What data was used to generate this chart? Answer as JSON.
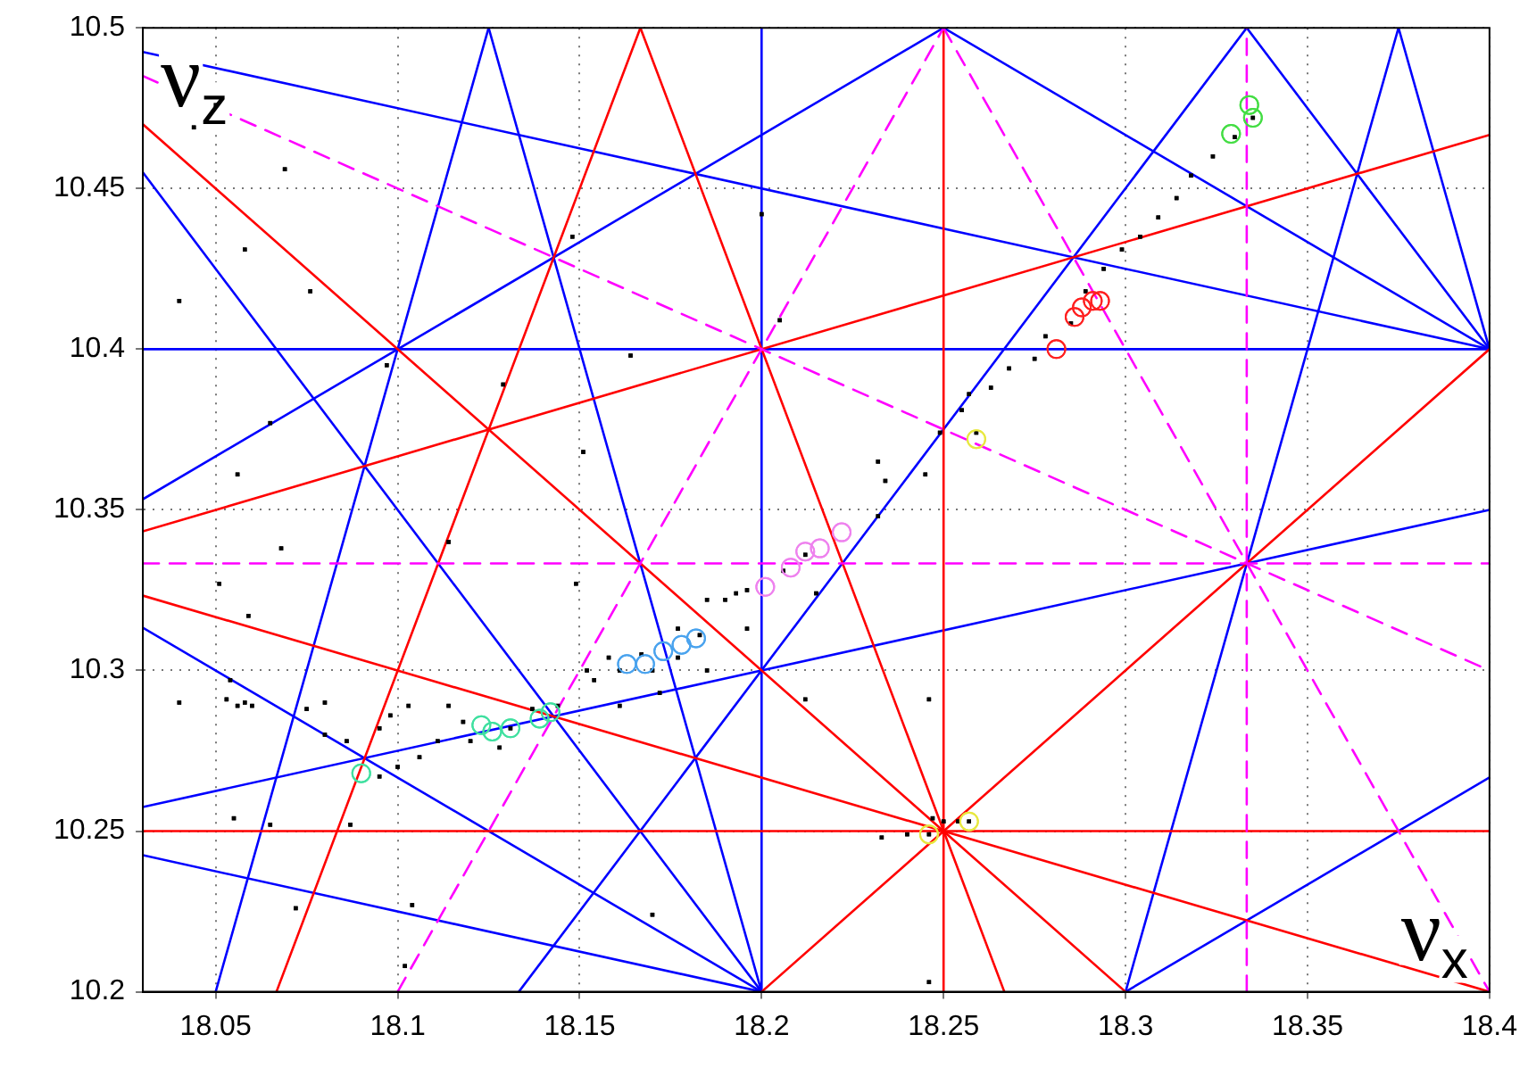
{
  "chart_data": {
    "type": "scatter",
    "xlabel": "ν$_{x}$",
    "ylabel": "ν$_{z}$",
    "xlim": [
      18.03,
      18.4
    ],
    "ylim": [
      10.2,
      10.5
    ],
    "xticks": [
      18.05,
      18.1,
      18.15,
      18.2,
      18.25,
      18.3,
      18.35,
      18.4
    ],
    "yticks": [
      10.2,
      10.25,
      10.3,
      10.35,
      10.4,
      10.45,
      10.5
    ],
    "grid": true,
    "series": [
      {
        "type": "line",
        "color": "#0000ff",
        "marker": "none",
        "line_style": "solid",
        "x": [
          18.03,
          18.4
        ],
        "values": [
          10.4,
          10.4
        ]
      },
      {
        "type": "line",
        "color": "#0000ff",
        "marker": "none",
        "line_style": "solid",
        "x": [
          18.2,
          18.2
        ],
        "values": [
          10.2,
          10.5
        ]
      },
      {
        "type": "line",
        "color": "#0000ff",
        "marker": "none",
        "line_style": "solid",
        "x": [
          18.03,
          18.4
        ],
        "values": [
          10.4925,
          10.4
        ]
      },
      {
        "type": "line",
        "color": "#0000ff",
        "marker": "none",
        "line_style": "solid",
        "x": [
          18.03,
          18.2
        ],
        "values": [
          10.2425,
          10.2
        ]
      },
      {
        "type": "line",
        "color": "#0000ff",
        "marker": "none",
        "line_style": "solid",
        "x": [
          18.03,
          18.4
        ],
        "values": [
          10.2575,
          10.35
        ]
      },
      {
        "type": "line",
        "color": "#0000ff",
        "marker": "none",
        "line_style": "solid",
        "x": [
          18.125,
          18.2
        ],
        "values": [
          10.5,
          10.2
        ]
      },
      {
        "type": "line",
        "color": "#0000ff",
        "marker": "none",
        "line_style": "solid",
        "x": [
          18.375,
          18.4
        ],
        "values": [
          10.5,
          10.4
        ]
      },
      {
        "type": "line",
        "color": "#0000ff",
        "marker": "none",
        "line_style": "solid",
        "x": [
          18.05,
          18.125
        ],
        "values": [
          10.2,
          10.5
        ]
      },
      {
        "type": "line",
        "color": "#0000ff",
        "marker": "none",
        "line_style": "solid",
        "x": [
          18.3,
          18.375
        ],
        "values": [
          10.2,
          10.5
        ]
      },
      {
        "type": "line",
        "color": "#0000ff",
        "marker": "none",
        "line_style": "solid",
        "x": [
          18.25,
          18.4
        ],
        "values": [
          10.5,
          10.4
        ]
      },
      {
        "type": "line",
        "color": "#0000ff",
        "marker": "none",
        "line_style": "solid",
        "x": [
          18.03,
          18.2
        ],
        "values": [
          10.3133,
          10.2
        ]
      },
      {
        "type": "line",
        "color": "#0000ff",
        "marker": "none",
        "line_style": "solid",
        "x": [
          18.03,
          18.25
        ],
        "values": [
          10.3533,
          10.5
        ]
      },
      {
        "type": "line",
        "color": "#0000ff",
        "marker": "none",
        "line_style": "solid",
        "x": [
          18.3,
          18.4
        ],
        "values": [
          10.2,
          10.2667
        ]
      },
      {
        "type": "line",
        "color": "#0000ff",
        "marker": "none",
        "line_style": "solid",
        "x": [
          18.03,
          18.2
        ],
        "values": [
          10.455,
          10.2
        ]
      },
      {
        "type": "line",
        "color": "#0000ff",
        "marker": "none",
        "line_style": "solid",
        "x": [
          18.3333,
          18.4
        ],
        "values": [
          10.5,
          10.4
        ]
      },
      {
        "type": "line",
        "color": "#0000ff",
        "marker": "none",
        "line_style": "solid",
        "x": [
          18.1333,
          18.3333
        ],
        "values": [
          10.2,
          10.5
        ]
      },
      {
        "type": "line",
        "color": "#ff0000",
        "marker": "none",
        "line_style": "solid",
        "x": [
          18.25,
          18.25
        ],
        "values": [
          10.2,
          10.5
        ]
      },
      {
        "type": "line",
        "color": "#ff0000",
        "marker": "none",
        "line_style": "solid",
        "x": [
          18.03,
          18.4
        ],
        "values": [
          10.25,
          10.25
        ]
      },
      {
        "type": "line",
        "color": "#ff0000",
        "marker": "none",
        "line_style": "solid",
        "x": [
          18.03,
          18.3
        ],
        "values": [
          10.47,
          10.2
        ]
      },
      {
        "type": "line",
        "color": "#ff0000",
        "marker": "none",
        "line_style": "solid",
        "x": [
          18.2,
          18.4
        ],
        "values": [
          10.2,
          10.4
        ]
      },
      {
        "type": "line",
        "color": "#ff0000",
        "marker": "none",
        "line_style": "solid",
        "x": [
          18.1667,
          18.2667
        ],
        "values": [
          10.5,
          10.2
        ]
      },
      {
        "type": "line",
        "color": "#ff0000",
        "marker": "none",
        "line_style": "solid",
        "x": [
          18.03,
          18.4
        ],
        "values": [
          10.3233,
          10.2
        ]
      },
      {
        "type": "line",
        "color": "#ff0000",
        "marker": "none",
        "line_style": "solid",
        "x": [
          18.0667,
          18.1667
        ],
        "values": [
          10.2,
          10.5
        ]
      },
      {
        "type": "line",
        "color": "#ff0000",
        "marker": "none",
        "line_style": "solid",
        "x": [
          18.03,
          18.4
        ],
        "values": [
          10.3433,
          10.4667
        ]
      },
      {
        "type": "line",
        "color": "#ff00ff",
        "marker": "none",
        "line_style": "dashed",
        "x": [
          18.3333,
          18.3333
        ],
        "values": [
          10.2,
          10.5
        ]
      },
      {
        "type": "line",
        "color": "#ff00ff",
        "marker": "none",
        "line_style": "dashed",
        "x": [
          18.03,
          18.4
        ],
        "values": [
          10.3333,
          10.3333
        ]
      },
      {
        "type": "line",
        "color": "#ff00ff",
        "marker": "none",
        "line_style": "dashed",
        "x": [
          18.03,
          18.4
        ],
        "values": [
          10.485,
          10.3
        ]
      },
      {
        "type": "line",
        "color": "#ff00ff",
        "marker": "none",
        "line_style": "dashed",
        "x": [
          18.25,
          18.4
        ],
        "values": [
          10.5,
          10.2
        ]
      },
      {
        "type": "line",
        "color": "#ff00ff",
        "marker": "none",
        "line_style": "dashed",
        "x": [
          18.1,
          18.25
        ],
        "values": [
          10.2,
          10.5
        ]
      },
      {
        "color": "#000000",
        "marker": "square",
        "x": [
          18.044,
          18.05,
          18.069,
          18.04,
          18.058,
          18.076,
          18.097,
          18.129,
          18.148,
          18.164,
          18.2,
          18.205,
          18.065,
          18.056,
          18.151,
          18.068,
          18.114,
          18.051,
          18.059,
          18.054,
          18.04,
          18.053,
          18.056,
          18.058,
          18.06,
          18.075,
          18.08,
          18.08,
          18.086,
          18.087,
          18.055,
          18.065,
          18.072,
          18.104,
          18.102,
          18.17,
          18.149,
          18.095,
          18.1,
          18.212,
          18.095,
          18.098,
          18.103,
          18.106,
          18.111,
          18.114,
          18.118,
          18.12,
          18.128,
          18.131,
          18.137,
          18.144,
          18.154,
          18.161,
          18.17,
          18.177,
          18.183,
          18.19,
          18.196,
          18.206,
          18.212,
          18.152,
          18.158,
          18.167,
          18.177,
          18.185,
          18.193,
          18.161,
          18.172,
          18.185,
          18.196,
          18.215,
          18.232,
          18.232,
          18.234,
          18.245,
          18.249,
          18.259,
          18.255,
          18.257,
          18.263,
          18.268,
          18.275,
          18.278,
          18.285,
          18.289,
          18.294,
          18.299,
          18.304,
          18.309,
          18.314,
          18.318,
          18.324,
          18.33,
          18.335,
          18.247,
          18.25,
          18.254,
          18.257,
          18.233,
          18.24,
          18.246,
          18.246,
          18.246
        ],
        "values": [
          10.469,
          10.476,
          10.456,
          10.415,
          10.431,
          10.418,
          10.395,
          10.389,
          10.435,
          10.398,
          10.442,
          10.409,
          10.377,
          10.361,
          10.368,
          10.338,
          10.34,
          10.327,
          10.317,
          10.297,
          10.29,
          10.291,
          10.289,
          10.29,
          10.289,
          10.288,
          10.29,
          10.28,
          10.278,
          10.252,
          10.254,
          10.252,
          10.226,
          10.227,
          10.208,
          10.224,
          10.327,
          10.267,
          10.27,
          10.291,
          10.282,
          10.286,
          10.289,
          10.273,
          10.278,
          10.289,
          10.284,
          10.278,
          10.276,
          10.282,
          10.288,
          10.289,
          10.297,
          10.3,
          10.3,
          10.304,
          10.311,
          10.322,
          10.325,
          10.331,
          10.336,
          10.3,
          10.304,
          10.305,
          10.313,
          10.322,
          10.324,
          10.289,
          10.293,
          10.3,
          10.313,
          10.324,
          10.348,
          10.365,
          10.359,
          10.361,
          10.374,
          10.374,
          10.381,
          10.386,
          10.388,
          10.394,
          10.397,
          10.404,
          10.408,
          10.418,
          10.425,
          10.431,
          10.435,
          10.441,
          10.447,
          10.454,
          10.46,
          10.466,
          10.472,
          10.254,
          10.253,
          10.253,
          10.253,
          10.248,
          10.249,
          10.249,
          10.203,
          10.291
        ]
      },
      {
        "color": "#40e0a0",
        "marker": "circle",
        "x": [
          18.09,
          18.123,
          18.126,
          18.131,
          18.139,
          18.142
        ],
        "values": [
          10.268,
          10.283,
          10.281,
          10.282,
          10.285,
          10.287
        ]
      },
      {
        "color": "#4aa3ee",
        "marker": "circle",
        "x": [
          18.163,
          18.168,
          18.173,
          18.178,
          18.182
        ],
        "values": [
          10.302,
          10.302,
          10.306,
          10.308,
          10.31
        ]
      },
      {
        "color": "#ee82ee",
        "marker": "circle",
        "x": [
          18.201,
          18.208,
          18.212,
          18.216,
          18.222
        ],
        "values": [
          10.326,
          10.332,
          10.337,
          10.338,
          10.343
        ]
      },
      {
        "color": "#e8e840",
        "marker": "circle",
        "x": [
          18.259,
          18.246,
          18.257
        ],
        "values": [
          10.372,
          10.249,
          10.253
        ]
      },
      {
        "color": "#ff2020",
        "marker": "circle",
        "x": [
          18.281,
          18.286,
          18.288,
          18.291,
          18.293
        ],
        "values": [
          10.4,
          10.41,
          10.413,
          10.415,
          10.415
        ]
      },
      {
        "color": "#44dd44",
        "marker": "circle",
        "x": [
          18.329,
          18.334,
          18.335
        ],
        "values": [
          10.467,
          10.476,
          10.472
        ]
      }
    ]
  }
}
